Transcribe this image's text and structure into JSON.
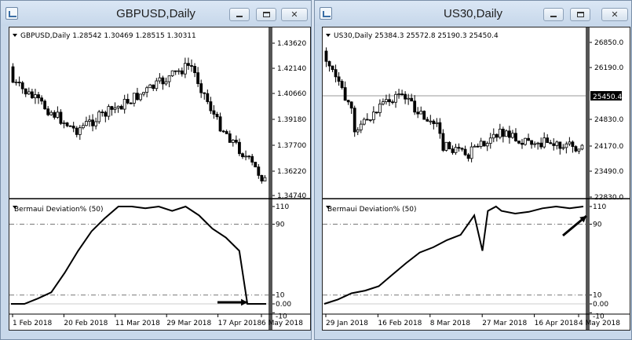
{
  "windows": [
    {
      "title": "GBPUSD,Daily",
      "price_header": "GBPUSD,Daily  1.28542 1.30469 1.28515 1.30311",
      "price_axis": [
        "1.43620",
        "1.42140",
        "1.40660",
        "1.39180",
        "1.37700",
        "1.36220",
        "1.34740"
      ],
      "indicator_name": "Bermaui Deviation% (50)",
      "indicator_axis": [
        "110",
        "90",
        "10",
        "0.00",
        "-10"
      ],
      "date_axis": [
        "1 Feb 2018",
        "20 Feb 2018",
        "11 Mar 2018",
        "29 Mar 2018",
        "17 Apr 2018",
        "6 May 2018"
      ]
    },
    {
      "title": "US30,Daily",
      "price_header": "US30,Daily  25384.3 25572.8 25190.3 25450.4",
      "price_axis": [
        "26850.0",
        "26190.0",
        "25450.4",
        "24830.0",
        "24170.0",
        "23490.0",
        "22830.0"
      ],
      "current_price": "25450.4",
      "indicator_name": "Bermaui Deviation% (50)",
      "indicator_axis": [
        "110",
        "90",
        "10",
        "0.00",
        "-10"
      ],
      "date_axis": [
        "29 Jan 2018",
        "16 Feb 2018",
        "8 Mar 2018",
        "27 Mar 2018",
        "16 Apr 2018",
        "4 May 2018"
      ]
    }
  ],
  "chart_data": [
    {
      "type": "line",
      "series": [
        {
          "name": "Bermaui Deviation% (50)",
          "x": [
            0,
            5,
            10,
            15,
            20,
            25,
            30,
            35,
            40,
            45,
            50,
            55,
            60,
            65,
            70,
            75,
            80,
            85,
            88,
            90,
            95
          ],
          "values": [
            0,
            0,
            6,
            13,
            35,
            60,
            82,
            97,
            110,
            110,
            108,
            110,
            105,
            110,
            100,
            85,
            75,
            60,
            0,
            0,
            0
          ]
        }
      ],
      "xlabel": "",
      "ylabel": "",
      "ylim": [
        -10,
        110
      ]
    },
    {
      "type": "line",
      "series": [
        {
          "name": "Bermaui Deviation% (50)",
          "x": [
            0,
            5,
            10,
            15,
            20,
            25,
            30,
            35,
            40,
            45,
            50,
            55,
            58,
            60,
            63,
            65,
            70,
            75,
            80,
            85,
            90,
            95
          ],
          "values": [
            0,
            5,
            12,
            15,
            20,
            33,
            46,
            58,
            64,
            72,
            78,
            100,
            60,
            105,
            110,
            105,
            102,
            104,
            108,
            110,
            108,
            110
          ]
        }
      ],
      "xlabel": "",
      "ylabel": "",
      "ylim": [
        -10,
        110
      ]
    }
  ]
}
